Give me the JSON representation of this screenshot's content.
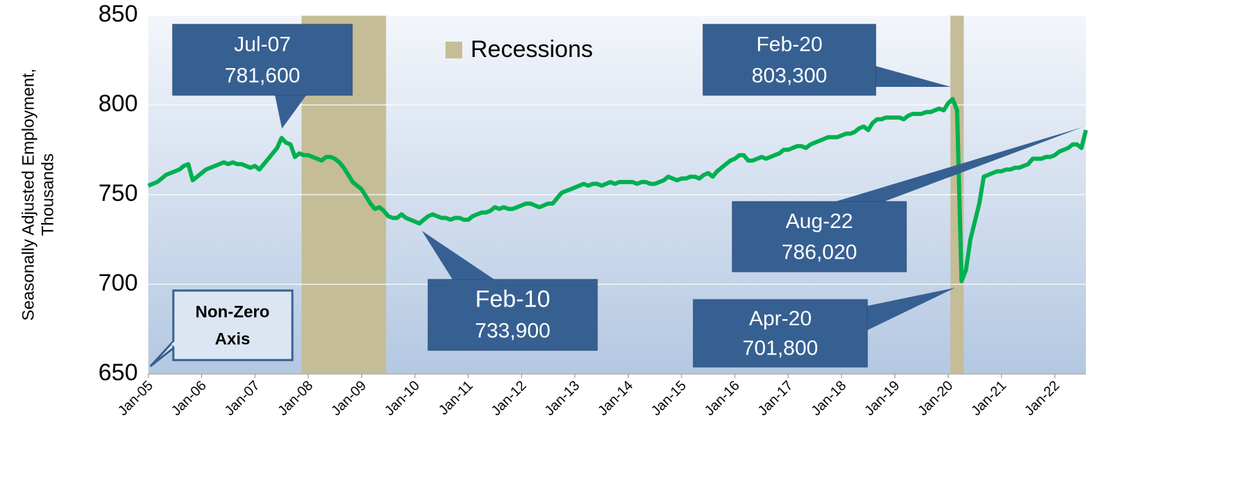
{
  "chart_data": {
    "type": "line",
    "ylabel": [
      "Seasonally Adjusted Employment,",
      "Thousands"
    ],
    "categories": [
      "Jan-05",
      null,
      null,
      null,
      null,
      null,
      null,
      null,
      null,
      null,
      null,
      null,
      "Jan-06",
      null,
      null,
      null,
      null,
      null,
      null,
      null,
      null,
      null,
      null,
      null,
      "Jan-07",
      null,
      null,
      null,
      null,
      null,
      null,
      null,
      null,
      null,
      null,
      null,
      "Jan-08",
      null,
      null,
      null,
      null,
      null,
      null,
      null,
      null,
      null,
      null,
      null,
      "Jan-09",
      null,
      null,
      null,
      null,
      null,
      null,
      null,
      null,
      null,
      null,
      null,
      "Jan-10",
      null,
      null,
      null,
      null,
      null,
      null,
      null,
      null,
      null,
      null,
      null,
      "Jan-11",
      null,
      null,
      null,
      null,
      null,
      null,
      null,
      null,
      null,
      null,
      null,
      "Jan-12",
      null,
      null,
      null,
      null,
      null,
      null,
      null,
      null,
      null,
      null,
      null,
      "Jan-13",
      null,
      null,
      null,
      null,
      null,
      null,
      null,
      null,
      null,
      null,
      null,
      "Jan-14",
      null,
      null,
      null,
      null,
      null,
      null,
      null,
      null,
      null,
      null,
      null,
      "Jan-15",
      null,
      null,
      null,
      null,
      null,
      null,
      null,
      null,
      null,
      null,
      null,
      "Jan-16",
      null,
      null,
      null,
      null,
      null,
      null,
      null,
      null,
      null,
      null,
      null,
      "Jan-17",
      null,
      null,
      null,
      null,
      null,
      null,
      null,
      null,
      null,
      null,
      null,
      "Jan-18",
      null,
      null,
      null,
      null,
      null,
      null,
      null,
      null,
      null,
      null,
      null,
      "Jan-19",
      null,
      null,
      null,
      null,
      null,
      null,
      null,
      null,
      null,
      null,
      null,
      "Jan-20",
      null,
      null,
      null,
      null,
      null,
      null,
      null,
      null,
      null,
      null,
      null,
      "Jan-21",
      null,
      null,
      null,
      null,
      null,
      null,
      null,
      null,
      null,
      null,
      null,
      "Jan-22",
      null,
      null,
      null,
      null,
      null,
      null,
      null
    ],
    "series": [
      {
        "name": "Employment",
        "color": "#00b050",
        "values": [
          755,
          756,
          757,
          759,
          761,
          762,
          763,
          764,
          766,
          767,
          758,
          760,
          762,
          764,
          765,
          766,
          767,
          768,
          767,
          768,
          767,
          767,
          766,
          765,
          766,
          764,
          767,
          770,
          773,
          776,
          781.6,
          779,
          778,
          771,
          773,
          772,
          772,
          771,
          770,
          769,
          771,
          771,
          770,
          768,
          765,
          761,
          757,
          755,
          753,
          749,
          745,
          742,
          743,
          741,
          738,
          737,
          737,
          739,
          737,
          736,
          735,
          733.9,
          736,
          738,
          739,
          738,
          737,
          737,
          736,
          737,
          737,
          736,
          736,
          738,
          739,
          740,
          740,
          741,
          743,
          742,
          743,
          742,
          742,
          743,
          744,
          745,
          745,
          744,
          743,
          744,
          745,
          745,
          748,
          751,
          752,
          753,
          754,
          755,
          756,
          755,
          756,
          756,
          755,
          756,
          757,
          756,
          757,
          757,
          757,
          757,
          756,
          757,
          757,
          756,
          756,
          757,
          758,
          760,
          759,
          758,
          759,
          759,
          760,
          760,
          759,
          761,
          762,
          760,
          763,
          765,
          767,
          769,
          770,
          772,
          772,
          769,
          769,
          770,
          771,
          770,
          771,
          772,
          773,
          775,
          775,
          776,
          777,
          777,
          776,
          778,
          779,
          780,
          781,
          782,
          782,
          782,
          783,
          784,
          784,
          785,
          787,
          788,
          786,
          790,
          792,
          792,
          793,
          793,
          793,
          793,
          792,
          794,
          795,
          795,
          795,
          796,
          796,
          797,
          798,
          797,
          801,
          803.3,
          797,
          701.8,
          708,
          725,
          735,
          745,
          760,
          761,
          762,
          763,
          763,
          764,
          764,
          765,
          765,
          766,
          767,
          770,
          770,
          770,
          771,
          771,
          772,
          774,
          775,
          776,
          778,
          778,
          776,
          786.02
        ]
      }
    ],
    "shaded": {
      "name": "Recessions",
      "color": "#c4bd97",
      "ranges": [
        [
          35,
          53
        ],
        [
          181,
          183
        ]
      ]
    },
    "ylim": [
      650,
      850
    ],
    "yticks": [
      650,
      700,
      750,
      800,
      850
    ],
    "grid": true,
    "annotations": [
      {
        "date": "Jul-07",
        "value": "781,600"
      },
      {
        "date": "Feb-10",
        "value": "733,900"
      },
      {
        "date": "Feb-20",
        "value": "803,300"
      },
      {
        "date": "Aug-22",
        "value": "786,020"
      },
      {
        "date": "Apr-20",
        "value": "701,800"
      }
    ],
    "note": [
      "Non-Zero",
      "Axis"
    ]
  }
}
